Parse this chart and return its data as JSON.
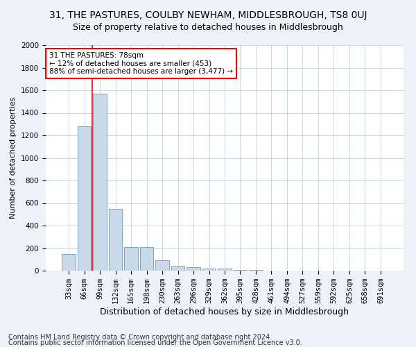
{
  "title": "31, THE PASTURES, COULBY NEWHAM, MIDDLESBROUGH, TS8 0UJ",
  "subtitle": "Size of property relative to detached houses in Middlesbrough",
  "xlabel": "Distribution of detached houses by size in Middlesbrough",
  "ylabel": "Number of detached properties",
  "footnote1": "Contains HM Land Registry data © Crown copyright and database right 2024.",
  "footnote2": "Contains public sector information licensed under the Open Government Licence v3.0.",
  "categories": [
    "33sqm",
    "66sqm",
    "99sqm",
    "132sqm",
    "165sqm",
    "198sqm",
    "230sqm",
    "263sqm",
    "296sqm",
    "329sqm",
    "362sqm",
    "395sqm",
    "428sqm",
    "461sqm",
    "494sqm",
    "527sqm",
    "559sqm",
    "592sqm",
    "625sqm",
    "658sqm",
    "691sqm"
  ],
  "values": [
    150,
    1280,
    1570,
    550,
    210,
    210,
    95,
    45,
    30,
    20,
    20,
    5,
    5,
    0,
    0,
    0,
    0,
    0,
    0,
    0,
    0
  ],
  "bar_color": "#c9d9e8",
  "bar_edge_color": "#6a9ec0",
  "annotation_text": "31 THE PASTURES: 78sqm\n← 12% of detached houses are smaller (453)\n88% of semi-detached houses are larger (3,477) →",
  "annotation_box_color": "white",
  "annotation_box_edge_color": "red",
  "vline_color": "red",
  "vline_bar_index": 1.5,
  "ylim": [
    0,
    2000
  ],
  "yticks": [
    0,
    200,
    400,
    600,
    800,
    1000,
    1200,
    1400,
    1600,
    1800,
    2000
  ],
  "bg_color": "#eef2f8",
  "plot_bg_color": "white",
  "title_fontsize": 10,
  "subtitle_fontsize": 9,
  "xlabel_fontsize": 9,
  "ylabel_fontsize": 8,
  "tick_fontsize": 7.5,
  "footnote_fontsize": 7
}
